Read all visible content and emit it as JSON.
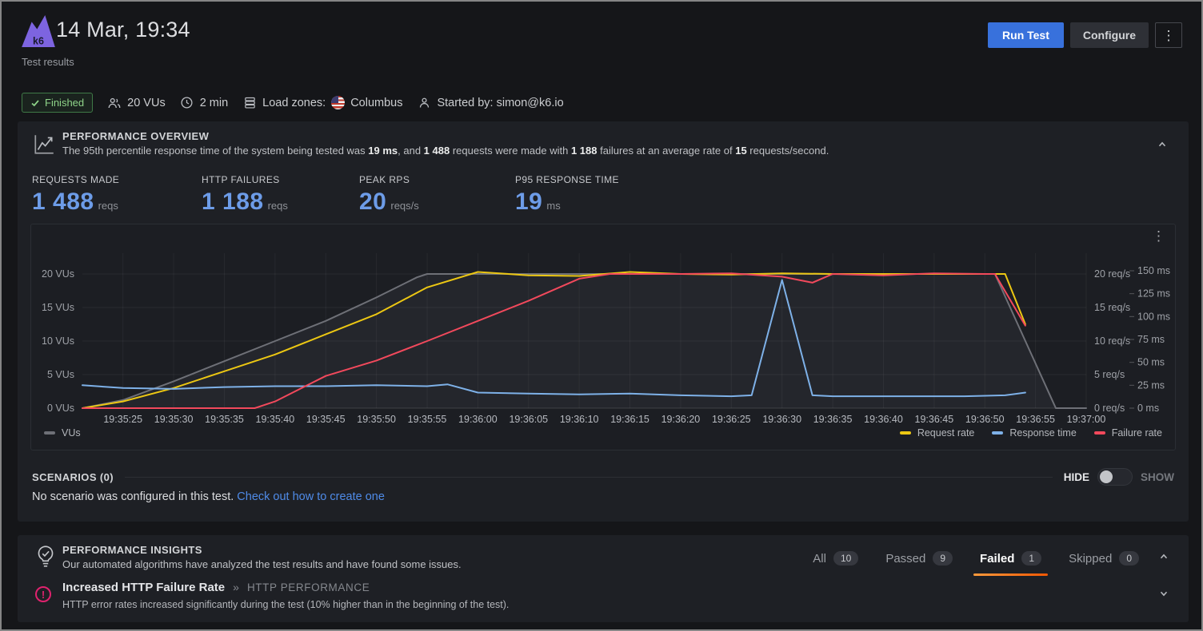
{
  "header": {
    "title": "14 Mar, 19:34",
    "subtitle": "Test results",
    "logo_text": "k6",
    "run_test_label": "Run Test",
    "configure_label": "Configure",
    "kebab_glyph": "⋮"
  },
  "status_bar": {
    "finished_badge": "Finished",
    "vus": "20 VUs",
    "duration": "2 min",
    "load_zones_label": "Load zones:",
    "load_zone": "Columbus",
    "started_by": "Started by: simon@k6.io"
  },
  "overview": {
    "title": "PERFORMANCE OVERVIEW",
    "description_parts": [
      "The 95th percentile response time of the system being tested was ",
      "19 ms",
      ", and ",
      "1 488",
      " requests were made with ",
      "1 188",
      " failures at an average rate of ",
      "15",
      " requests/second."
    ],
    "stats": [
      {
        "label": "REQUESTS MADE",
        "value": "1 488",
        "unit": "reqs"
      },
      {
        "label": "HTTP FAILURES",
        "value": "1 188",
        "unit": "reqs"
      },
      {
        "label": "PEAK RPS",
        "value": "20",
        "unit": "reqs/s"
      },
      {
        "label": "P95 RESPONSE TIME",
        "value": "19",
        "unit": "ms"
      }
    ],
    "scenarios": {
      "title": "SCENARIOS (0)",
      "hide_label": "HIDE",
      "show_label": "SHOW",
      "empty_text": "No scenario was configured in this test. ",
      "link_text": "Check out how to create one"
    }
  },
  "chart_data": {
    "type": "line",
    "x_domain_seconds": [
      0,
      99
    ],
    "x_ticks": [
      {
        "t": 4,
        "label": "19:35:25"
      },
      {
        "t": 9,
        "label": "19:35:30"
      },
      {
        "t": 14,
        "label": "19:35:35"
      },
      {
        "t": 19,
        "label": "19:35:40"
      },
      {
        "t": 24,
        "label": "19:35:45"
      },
      {
        "t": 29,
        "label": "19:35:50"
      },
      {
        "t": 34,
        "label": "19:35:55"
      },
      {
        "t": 39,
        "label": "19:36:00"
      },
      {
        "t": 44,
        "label": "19:36:05"
      },
      {
        "t": 49,
        "label": "19:36:10"
      },
      {
        "t": 54,
        "label": "19:36:15"
      },
      {
        "t": 59,
        "label": "19:36:20"
      },
      {
        "t": 64,
        "label": "19:36:25"
      },
      {
        "t": 69,
        "label": "19:36:30"
      },
      {
        "t": 74,
        "label": "19:36:35"
      },
      {
        "t": 79,
        "label": "19:36:40"
      },
      {
        "t": 84,
        "label": "19:36:45"
      },
      {
        "t": 89,
        "label": "19:36:50"
      },
      {
        "t": 94,
        "label": "19:36:55"
      },
      {
        "t": 99,
        "label": "19:37:00"
      }
    ],
    "axes": {
      "vus": {
        "unit": "VUs",
        "ticks": [
          {
            "v": 0,
            "label": "0 VUs"
          },
          {
            "v": 5,
            "label": "5 VUs"
          },
          {
            "v": 10,
            "label": "10 VUs"
          },
          {
            "v": 15,
            "label": "15 VUs"
          },
          {
            "v": 20,
            "label": "20 VUs"
          }
        ]
      },
      "rate": {
        "unit": "req/s",
        "ticks": [
          {
            "v": 0,
            "label": "0 req/s"
          },
          {
            "v": 5,
            "label": "5 req/s"
          },
          {
            "v": 10,
            "label": "10 req/s"
          },
          {
            "v": 15,
            "label": "15 req/s"
          },
          {
            "v": 20,
            "label": "20 req/s"
          }
        ]
      },
      "ms": {
        "unit": "ms",
        "ticks": [
          {
            "v": 0,
            "label": "0 ms"
          },
          {
            "v": 25,
            "label": "25 ms"
          },
          {
            "v": 50,
            "label": "50 ms"
          },
          {
            "v": 75,
            "label": "75 ms"
          },
          {
            "v": 100,
            "label": "100 ms"
          },
          {
            "v": 125,
            "label": "125 ms"
          },
          {
            "v": 150,
            "label": "150 ms"
          }
        ]
      }
    },
    "series": [
      {
        "name": "VUs",
        "color": "#6e7077",
        "axis": "vus",
        "fill": true,
        "points": [
          [
            0,
            0
          ],
          [
            2,
            0.6
          ],
          [
            4,
            1.2
          ],
          [
            9,
            4
          ],
          [
            14,
            7
          ],
          [
            19,
            10
          ],
          [
            24,
            13
          ],
          [
            29,
            16.5
          ],
          [
            33,
            19.5
          ],
          [
            34,
            20
          ],
          [
            44,
            20
          ],
          [
            54,
            20
          ],
          [
            64,
            20
          ],
          [
            74,
            20
          ],
          [
            84,
            20
          ],
          [
            90,
            20
          ],
          [
            96,
            0
          ],
          [
            99,
            0
          ]
        ]
      },
      {
        "name": "Request rate",
        "color": "#ecc713",
        "axis": "rate",
        "points": [
          [
            0,
            0
          ],
          [
            4,
            1
          ],
          [
            9,
            3
          ],
          [
            14,
            5.5
          ],
          [
            19,
            8
          ],
          [
            24,
            11
          ],
          [
            29,
            14
          ],
          [
            34,
            18
          ],
          [
            39,
            20.3
          ],
          [
            44,
            19.8
          ],
          [
            49,
            19.7
          ],
          [
            54,
            20.3
          ],
          [
            59,
            20
          ],
          [
            64,
            19.9
          ],
          [
            69,
            20.1
          ],
          [
            74,
            20
          ],
          [
            79,
            20
          ],
          [
            84,
            20
          ],
          [
            89,
            20
          ],
          [
            91,
            20
          ],
          [
            93,
            12.5
          ]
        ]
      },
      {
        "name": "Response time",
        "color": "#7eb1e8",
        "axis": "ms",
        "points": [
          [
            0,
            25
          ],
          [
            4,
            22
          ],
          [
            9,
            21
          ],
          [
            14,
            23
          ],
          [
            19,
            24
          ],
          [
            24,
            24
          ],
          [
            29,
            25
          ],
          [
            34,
            24
          ],
          [
            36,
            26
          ],
          [
            39,
            17
          ],
          [
            44,
            16
          ],
          [
            49,
            15
          ],
          [
            54,
            16
          ],
          [
            59,
            14
          ],
          [
            64,
            13
          ],
          [
            66,
            14
          ],
          [
            69,
            140
          ],
          [
            72,
            14
          ],
          [
            74,
            13
          ],
          [
            79,
            13
          ],
          [
            84,
            13
          ],
          [
            87,
            13
          ],
          [
            91,
            14
          ],
          [
            93,
            17
          ]
        ]
      },
      {
        "name": "Failure rate",
        "color": "#f2495c",
        "axis": "rate",
        "points": [
          [
            0,
            0
          ],
          [
            10,
            0
          ],
          [
            17,
            0
          ],
          [
            19,
            1
          ],
          [
            24,
            4.8
          ],
          [
            29,
            7.1
          ],
          [
            34,
            10
          ],
          [
            39,
            13
          ],
          [
            44,
            16
          ],
          [
            49,
            19.3
          ],
          [
            52,
            20
          ],
          [
            59,
            20
          ],
          [
            64,
            20.1
          ],
          [
            69,
            19.6
          ],
          [
            72,
            18.7
          ],
          [
            74,
            20
          ],
          [
            79,
            19.8
          ],
          [
            84,
            20.1
          ],
          [
            89,
            20
          ],
          [
            90,
            20
          ],
          [
            93,
            12.3
          ]
        ]
      }
    ]
  },
  "insights": {
    "title": "PERFORMANCE INSIGHTS",
    "subtitle": "Our automated algorithms have analyzed the test results and have found some issues.",
    "tabs": [
      {
        "label": "All",
        "count": "10"
      },
      {
        "label": "Passed",
        "count": "9"
      },
      {
        "label": "Failed",
        "count": "1"
      },
      {
        "label": "Skipped",
        "count": "0"
      }
    ],
    "insight": {
      "title": "Increased HTTP Failure Rate",
      "separator": "»",
      "category": "HTTP PERFORMANCE",
      "description": "HTTP error rates increased significantly during the test (10% higher than in the beginning of the test)."
    }
  },
  "colors": {
    "accent_blue": "#3871dc",
    "stat_blue": "#6d9ce8",
    "link_blue": "#4f8be8",
    "success_green": "#8fd489",
    "failed_underline_orange": "#ff780a",
    "insight_error_pink": "#e0226e"
  }
}
